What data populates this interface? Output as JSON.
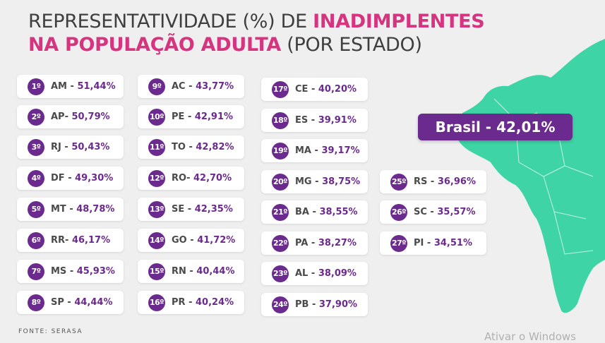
{
  "title": {
    "line1_prefix": "REPRESENTATIVIDADE (%) DE ",
    "line1_highlight": "INADIMPLENTES",
    "line2_highlight": "NA POPULAÇÃO ADULTA",
    "line2_suffix": " (POR ESTADO)"
  },
  "brasil_label": "Brasil - 42,01%",
  "source": "FONTE: SERASA",
  "watermark": "Ativar o Windows",
  "colors": {
    "accent": "#6b2a8d",
    "title_highlight": "#d6347f",
    "map": "#3ed4a6",
    "background": "#efefef"
  },
  "chart_data": {
    "type": "table",
    "title": "REPRESENTATIVIDADE (%) DE INADIMPLENTES NA POPULAÇÃO ADULTA (POR ESTADO)",
    "national": {
      "label": "Brasil",
      "value": 42.01
    },
    "rows": [
      {
        "rank": "1º",
        "state": "AM",
        "sep": " - ",
        "value": "51,44%"
      },
      {
        "rank": "2º",
        "state": "AP",
        "sep": "- ",
        "value": "50,79%"
      },
      {
        "rank": "3º",
        "state": "RJ",
        "sep": " - ",
        "value": "50,43%"
      },
      {
        "rank": "4º",
        "state": "DF",
        "sep": " - ",
        "value": "49,30%"
      },
      {
        "rank": "5º",
        "state": "MT",
        "sep": " - ",
        "value": "48,78%"
      },
      {
        "rank": "6º",
        "state": "RR",
        "sep": "- ",
        "value": "46,17%"
      },
      {
        "rank": "7º",
        "state": "MS",
        "sep": " - ",
        "value": "45,93%"
      },
      {
        "rank": "8º",
        "state": "SP",
        "sep": " - ",
        "value": "44,44%"
      },
      {
        "rank": "9º",
        "state": "AC",
        "sep": " - ",
        "value": "43,77%"
      },
      {
        "rank": "10º",
        "state": "PE",
        "sep": " - ",
        "value": "42,91%"
      },
      {
        "rank": "11º",
        "state": "TO",
        "sep": " - ",
        "value": "42,82%"
      },
      {
        "rank": "12º",
        "state": "RO",
        "sep": "- ",
        "value": "42,70%"
      },
      {
        "rank": "13º",
        "state": "SE",
        "sep": " - ",
        "value": "42,35%"
      },
      {
        "rank": "14º",
        "state": "GO",
        "sep": " - ",
        "value": "41,72%"
      },
      {
        "rank": "15º",
        "state": "RN",
        "sep": " - ",
        "value": "40,44%"
      },
      {
        "rank": "16º",
        "state": "PR",
        "sep": " - ",
        "value": "40,24%"
      },
      {
        "rank": "17º",
        "state": "CE",
        "sep": " - ",
        "value": "40,20%"
      },
      {
        "rank": "18º",
        "state": "ES",
        "sep": " - ",
        "value": "39,91%"
      },
      {
        "rank": "19º",
        "state": "MA",
        "sep": " - ",
        "value": "39,17%"
      },
      {
        "rank": "20º",
        "state": "MG",
        "sep": " - ",
        "value": "38,75%"
      },
      {
        "rank": "21º",
        "state": "BA",
        "sep": " - ",
        "value": "38,55%"
      },
      {
        "rank": "22º",
        "state": "PA",
        "sep": " - ",
        "value": "38,27%"
      },
      {
        "rank": "23º",
        "state": "AL",
        "sep": " - ",
        "value": "38,09%"
      },
      {
        "rank": "24º",
        "state": "PB",
        "sep": " - ",
        "value": "37,90%"
      },
      {
        "rank": "25º",
        "state": "RS",
        "sep": " - ",
        "value": "36,96%"
      },
      {
        "rank": "26º",
        "state": "SC",
        "sep": " - ",
        "value": "35,57%"
      },
      {
        "rank": "27º",
        "state": "PI",
        "sep": " - ",
        "value": "34,51%"
      }
    ]
  }
}
